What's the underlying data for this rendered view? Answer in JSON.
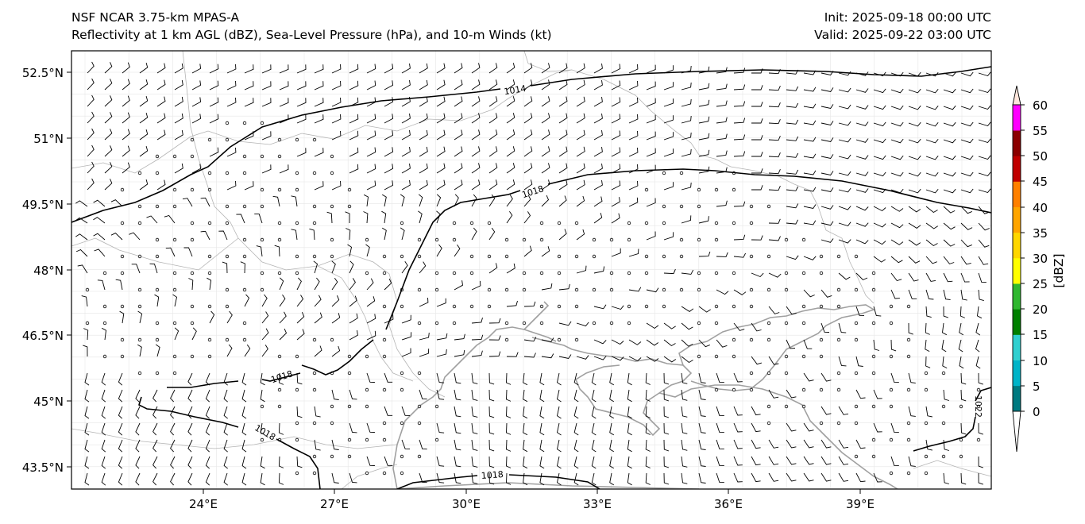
{
  "header": {
    "left_line1": "NSF NCAR 3.75-km MPAS-A",
    "left_line2": "Reflectivity at 1 km AGL (dBZ), Sea-Level Pressure (hPa), and 10-m Winds (kt)",
    "right_line1": "Init: 2025-09-18 00:00 UTC",
    "right_line2": "Valid: 2025-09-22 03:00 UTC"
  },
  "map": {
    "lat_ticks": [
      "52.5°N",
      "51°N",
      "49.5°N",
      "48°N",
      "46.5°N",
      "45°N",
      "43.5°N"
    ],
    "lon_ticks": [
      "24°E",
      "27°E",
      "30°E",
      "33°E",
      "36°E",
      "39°E"
    ],
    "isobar_labels": [
      {
        "text": "1014"
      },
      {
        "text": "1018"
      },
      {
        "text": "1018"
      },
      {
        "text": "1018"
      },
      {
        "text": "1018"
      },
      {
        "text": "1022"
      }
    ],
    "colors": {
      "coastline": "#a0a0a0",
      "border": "#b4b4b4",
      "isobar": "#000000",
      "barb": "#000000"
    }
  },
  "colorbar": {
    "label": "[dBZ]",
    "ticks": [
      "0",
      "5",
      "10",
      "15",
      "20",
      "25",
      "30",
      "35",
      "40",
      "45",
      "50",
      "55",
      "60"
    ],
    "colors": [
      "#007a80",
      "#00b4c8",
      "#30d0d0",
      "#008000",
      "#30b830",
      "#ffff00",
      "#ffd700",
      "#ffa500",
      "#ff8000",
      "#c00000",
      "#8b0000",
      "#ff00ff",
      "#ffe6dc"
    ]
  }
}
